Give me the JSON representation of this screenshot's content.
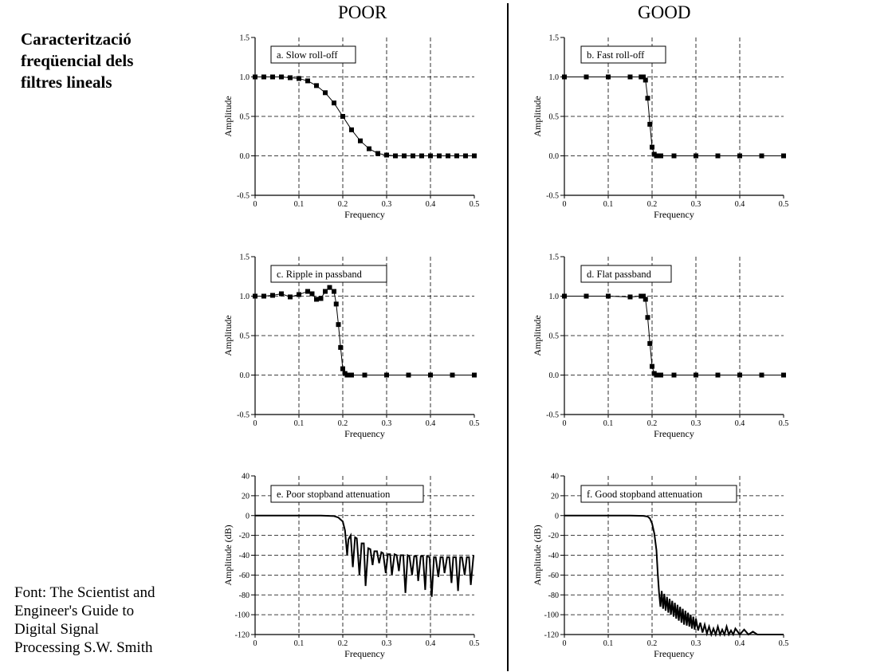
{
  "side": {
    "title_lines": [
      "Caracterització",
      "freqüencial dels",
      "filtres lineals"
    ],
    "source_lines": [
      "Font: The Scientist and",
      "Engineer's Guide to",
      "Digital Signal",
      "Processing S.W. Smith"
    ]
  },
  "columns": {
    "left": "POOR",
    "right": "GOOD"
  },
  "chart_data": [
    {
      "id": "a",
      "type": "line",
      "label": "a.  Slow roll-off",
      "xlabel": "Frequency",
      "ylabel": "Amplitude",
      "xlim": [
        0,
        0.5
      ],
      "ylim": [
        -0.5,
        1.5
      ],
      "xticks": [
        "0",
        "0.1",
        "0.2",
        "0.3",
        "0.4",
        "0.5"
      ],
      "yticks": [
        "-0.5",
        "0.0",
        "0.5",
        "1.0",
        "1.5"
      ],
      "markers": true,
      "grid": true,
      "x": [
        0,
        0.02,
        0.04,
        0.06,
        0.08,
        0.1,
        0.12,
        0.14,
        0.16,
        0.18,
        0.2,
        0.22,
        0.24,
        0.26,
        0.28,
        0.3,
        0.32,
        0.34,
        0.36,
        0.38,
        0.4,
        0.42,
        0.44,
        0.46,
        0.48,
        0.5
      ],
      "y": [
        1,
        1,
        1,
        1,
        0.99,
        0.98,
        0.95,
        0.89,
        0.8,
        0.67,
        0.5,
        0.33,
        0.19,
        0.09,
        0.03,
        0.01,
        0,
        0,
        0,
        0,
        0,
        0,
        0,
        0,
        0,
        0
      ]
    },
    {
      "id": "b",
      "type": "line",
      "label": "b.  Fast roll-off",
      "xlabel": "Frequency",
      "ylabel": "Amplitude",
      "xlim": [
        0,
        0.5
      ],
      "ylim": [
        -0.5,
        1.5
      ],
      "xticks": [
        "0",
        "0.1",
        "0.2",
        "0.3",
        "0.4",
        "0.5"
      ],
      "yticks": [
        "-0.5",
        "0.0",
        "0.5",
        "1.0",
        "1.5"
      ],
      "markers": true,
      "grid": true,
      "x": [
        0,
        0.05,
        0.1,
        0.15,
        0.175,
        0.18,
        0.185,
        0.19,
        0.195,
        0.2,
        0.205,
        0.21,
        0.215,
        0.22,
        0.25,
        0.3,
        0.35,
        0.4,
        0.45,
        0.5
      ],
      "y": [
        1,
        1,
        1,
        1,
        1,
        1,
        0.96,
        0.73,
        0.4,
        0.11,
        0.02,
        0,
        0,
        0,
        0,
        0,
        0,
        0,
        0,
        0
      ]
    },
    {
      "id": "c",
      "type": "line",
      "label": "c.  Ripple in passband",
      "xlabel": "Frequency",
      "ylabel": "Amplitude",
      "xlim": [
        0,
        0.5
      ],
      "ylim": [
        -0.5,
        1.5
      ],
      "xticks": [
        "0",
        "0.1",
        "0.2",
        "0.3",
        "0.4",
        "0.5"
      ],
      "yticks": [
        "-0.5",
        "0.0",
        "0.5",
        "1.0",
        "1.5"
      ],
      "markers": true,
      "grid": true,
      "x": [
        0,
        0.02,
        0.04,
        0.06,
        0.08,
        0.1,
        0.12,
        0.13,
        0.14,
        0.15,
        0.16,
        0.17,
        0.18,
        0.185,
        0.19,
        0.195,
        0.2,
        0.205,
        0.21,
        0.22,
        0.25,
        0.3,
        0.35,
        0.4,
        0.45,
        0.5
      ],
      "y": [
        1,
        1,
        1.01,
        1.03,
        0.99,
        1.02,
        1.06,
        1.03,
        0.96,
        0.97,
        1.06,
        1.11,
        1.06,
        0.9,
        0.64,
        0.35,
        0.08,
        0.02,
        0,
        0,
        0,
        0,
        0,
        0,
        0,
        0
      ]
    },
    {
      "id": "d",
      "type": "line",
      "label": "d.  Flat passband",
      "xlabel": "Frequency",
      "ylabel": "Amplitude",
      "xlim": [
        0,
        0.5
      ],
      "ylim": [
        -0.5,
        1.5
      ],
      "xticks": [
        "0",
        "0.1",
        "0.2",
        "0.3",
        "0.4",
        "0.5"
      ],
      "yticks": [
        "-0.5",
        "0.0",
        "0.5",
        "1.0",
        "1.5"
      ],
      "markers": true,
      "grid": true,
      "x": [
        0,
        0.05,
        0.1,
        0.15,
        0.175,
        0.18,
        0.185,
        0.19,
        0.195,
        0.2,
        0.205,
        0.21,
        0.215,
        0.22,
        0.25,
        0.3,
        0.35,
        0.4,
        0.45,
        0.5
      ],
      "y": [
        1,
        1,
        1,
        0.99,
        1,
        1,
        0.96,
        0.73,
        0.4,
        0.11,
        0.02,
        0,
        0,
        0,
        0,
        0,
        0,
        0,
        0,
        0
      ]
    },
    {
      "id": "e",
      "type": "line",
      "label": "e.  Poor stopband attenuation",
      "xlabel": "Frequency",
      "ylabel": "Amplitude (dB)",
      "xlim": [
        0,
        0.5
      ],
      "ylim": [
        -120,
        40
      ],
      "xticks": [
        "0",
        "0.1",
        "0.2",
        "0.3",
        "0.4",
        "0.5"
      ],
      "yticks": [
        "-120",
        "-100",
        "-80",
        "-60",
        "-40",
        "-20",
        "0",
        "20",
        "40"
      ],
      "markers": false,
      "grid": true,
      "x": [
        0,
        0.05,
        0.1,
        0.15,
        0.18,
        0.19,
        0.2,
        0.205,
        0.21,
        0.213,
        0.218,
        0.223,
        0.228,
        0.232,
        0.238,
        0.243,
        0.248,
        0.252,
        0.258,
        0.263,
        0.268,
        0.272,
        0.278,
        0.283,
        0.288,
        0.292,
        0.298,
        0.303,
        0.308,
        0.312,
        0.318,
        0.323,
        0.328,
        0.332,
        0.338,
        0.343,
        0.348,
        0.352,
        0.358,
        0.363,
        0.368,
        0.372,
        0.378,
        0.383,
        0.388,
        0.392,
        0.398,
        0.403,
        0.408,
        0.412,
        0.418,
        0.423,
        0.428,
        0.432,
        0.438,
        0.443,
        0.448,
        0.452,
        0.458,
        0.463,
        0.468,
        0.472,
        0.478,
        0.483,
        0.488,
        0.492,
        0.498,
        0.5
      ],
      "y": [
        0,
        0,
        0,
        0,
        -0.5,
        -2,
        -6,
        -15,
        -40,
        -24,
        -20,
        -52,
        -22,
        -23,
        -60,
        -28,
        -28,
        -71,
        -33,
        -34,
        -50,
        -36,
        -36,
        -48,
        -37,
        -38,
        -58,
        -39,
        -39,
        -60,
        -39,
        -40,
        -56,
        -40,
        -40,
        -78,
        -40,
        -41,
        -60,
        -41,
        -41,
        -66,
        -41,
        -41,
        -75,
        -41,
        -42,
        -82,
        -42,
        -42,
        -62,
        -42,
        -42,
        -58,
        -42,
        -42,
        -68,
        -42,
        -42,
        -76,
        -42,
        -42,
        -60,
        -42,
        -42,
        -70,
        -41,
        -41
      ]
    },
    {
      "id": "f",
      "type": "line",
      "label": "f.  Good stopband attenuation",
      "xlabel": "Frequency",
      "ylabel": "Amplitude (dB)",
      "xlim": [
        0,
        0.5
      ],
      "ylim": [
        -120,
        40
      ],
      "xticks": [
        "0",
        "0.1",
        "0.2",
        "0.3",
        "0.4",
        "0.5"
      ],
      "yticks": [
        "-120",
        "-100",
        "-80",
        "-60",
        "-40",
        "-20",
        "0",
        "20",
        "40"
      ],
      "markers": false,
      "grid": true,
      "x": [
        0,
        0.05,
        0.1,
        0.15,
        0.18,
        0.19,
        0.195,
        0.2,
        0.205,
        0.21,
        0.213,
        0.216,
        0.219,
        0.222,
        0.225,
        0.228,
        0.231,
        0.234,
        0.237,
        0.24,
        0.243,
        0.246,
        0.249,
        0.252,
        0.255,
        0.258,
        0.261,
        0.264,
        0.267,
        0.27,
        0.273,
        0.276,
        0.279,
        0.282,
        0.285,
        0.288,
        0.291,
        0.294,
        0.297,
        0.3,
        0.305,
        0.31,
        0.315,
        0.32,
        0.325,
        0.33,
        0.335,
        0.34,
        0.345,
        0.35,
        0.355,
        0.36,
        0.365,
        0.37,
        0.375,
        0.38,
        0.385,
        0.39,
        0.4,
        0.41,
        0.42,
        0.43,
        0.44,
        0.45,
        0.5
      ],
      "y": [
        0,
        0,
        0,
        0,
        -0.3,
        -1,
        -3,
        -8,
        -18,
        -35,
        -58,
        -78,
        -92,
        -76,
        -94,
        -79,
        -96,
        -82,
        -98,
        -84,
        -100,
        -86,
        -102,
        -88,
        -104,
        -90,
        -106,
        -92,
        -108,
        -94,
        -110,
        -96,
        -111,
        -98,
        -112,
        -100,
        -114,
        -102,
        -115,
        -104,
        -116,
        -108,
        -118,
        -110,
        -119,
        -112,
        -120,
        -114,
        -120,
        -112,
        -120,
        -115,
        -120,
        -112,
        -120,
        -116,
        -120,
        -114,
        -120,
        -115,
        -120,
        -117,
        -120,
        -120,
        -120
      ]
    }
  ]
}
